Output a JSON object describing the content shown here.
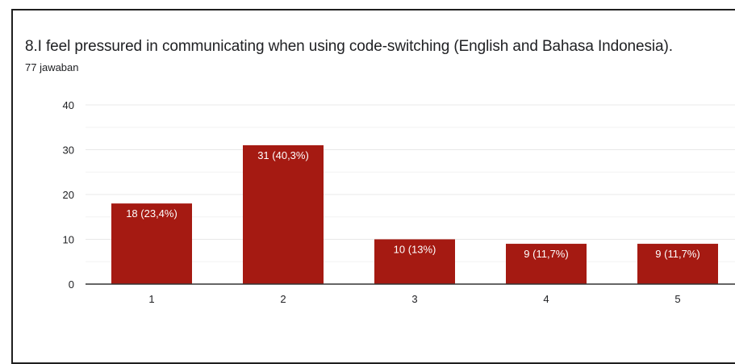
{
  "chart_data": {
    "type": "bar",
    "title": "8.I feel pressured in communicating when using code-switching (English and Bahasa Indonesia).",
    "subtitle": "77 jawaban",
    "categories": [
      "1",
      "2",
      "3",
      "4",
      "5"
    ],
    "values": [
      18,
      31,
      10,
      9,
      9
    ],
    "data_labels": [
      "18 (23,4%)",
      "31 (40,3%)",
      "10 (13%)",
      "9 (11,7%)",
      "9 (11,7%)"
    ],
    "y_ticks": [
      "0",
      "10",
      "20",
      "30",
      "40"
    ],
    "ylim": [
      0,
      40
    ],
    "grid": true,
    "bar_color": "#a51a12",
    "xlabel": "",
    "ylabel": ""
  }
}
